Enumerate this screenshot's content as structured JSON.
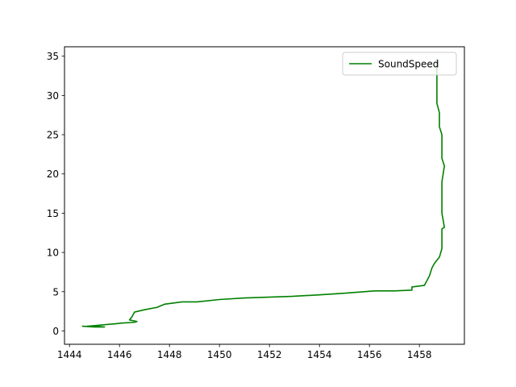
{
  "chart_data": {
    "type": "line",
    "title": "",
    "xlabel": "",
    "ylabel": "",
    "xlim": [
      1443.8,
      1459.8
    ],
    "ylim": [
      36.2,
      -1.7
    ],
    "y_inverted": true,
    "grid": false,
    "legend": "top-right",
    "x_ticks": [
      1444,
      1446,
      1448,
      1450,
      1452,
      1454,
      1456,
      1458
    ],
    "y_ticks": [
      0,
      5,
      10,
      15,
      20,
      25,
      30,
      35
    ],
    "series": [
      {
        "name": "SoundSpeed",
        "color": "#008000",
        "x": [
          1444.5,
          1445.0,
          1445.4,
          1445.0,
          1444.7,
          1445.8,
          1446.1,
          1446.6,
          1446.7,
          1446.4,
          1446.5,
          1446.6,
          1447.0,
          1447.5,
          1447.8,
          1448.5,
          1449.1,
          1450.0,
          1451.0,
          1452.9,
          1454.0,
          1455.0,
          1456.2,
          1457.0,
          1457.7,
          1457.7,
          1458.2,
          1458.4,
          1458.5,
          1458.6,
          1458.8,
          1458.9,
          1458.9,
          1458.9,
          1459.0,
          1458.9,
          1458.9,
          1458.9,
          1459.0,
          1458.9,
          1458.9,
          1458.8,
          1458.8,
          1458.7,
          1458.7,
          1458.7,
          1458.7
        ],
        "y": [
          0.6,
          0.5,
          0.5,
          0.6,
          0.6,
          0.9,
          1.0,
          1.1,
          1.2,
          1.4,
          1.8,
          2.4,
          2.7,
          3.0,
          3.4,
          3.7,
          3.7,
          4.0,
          4.2,
          4.4,
          4.6,
          4.8,
          5.1,
          5.1,
          5.2,
          5.6,
          5.8,
          7.0,
          8.0,
          8.6,
          9.4,
          10.5,
          12.0,
          13.0,
          13.2,
          15.0,
          17.0,
          19.0,
          21.0,
          22.0,
          25.0,
          26.0,
          27.8,
          29.0,
          31.0,
          33.0,
          34.7
        ]
      }
    ]
  }
}
